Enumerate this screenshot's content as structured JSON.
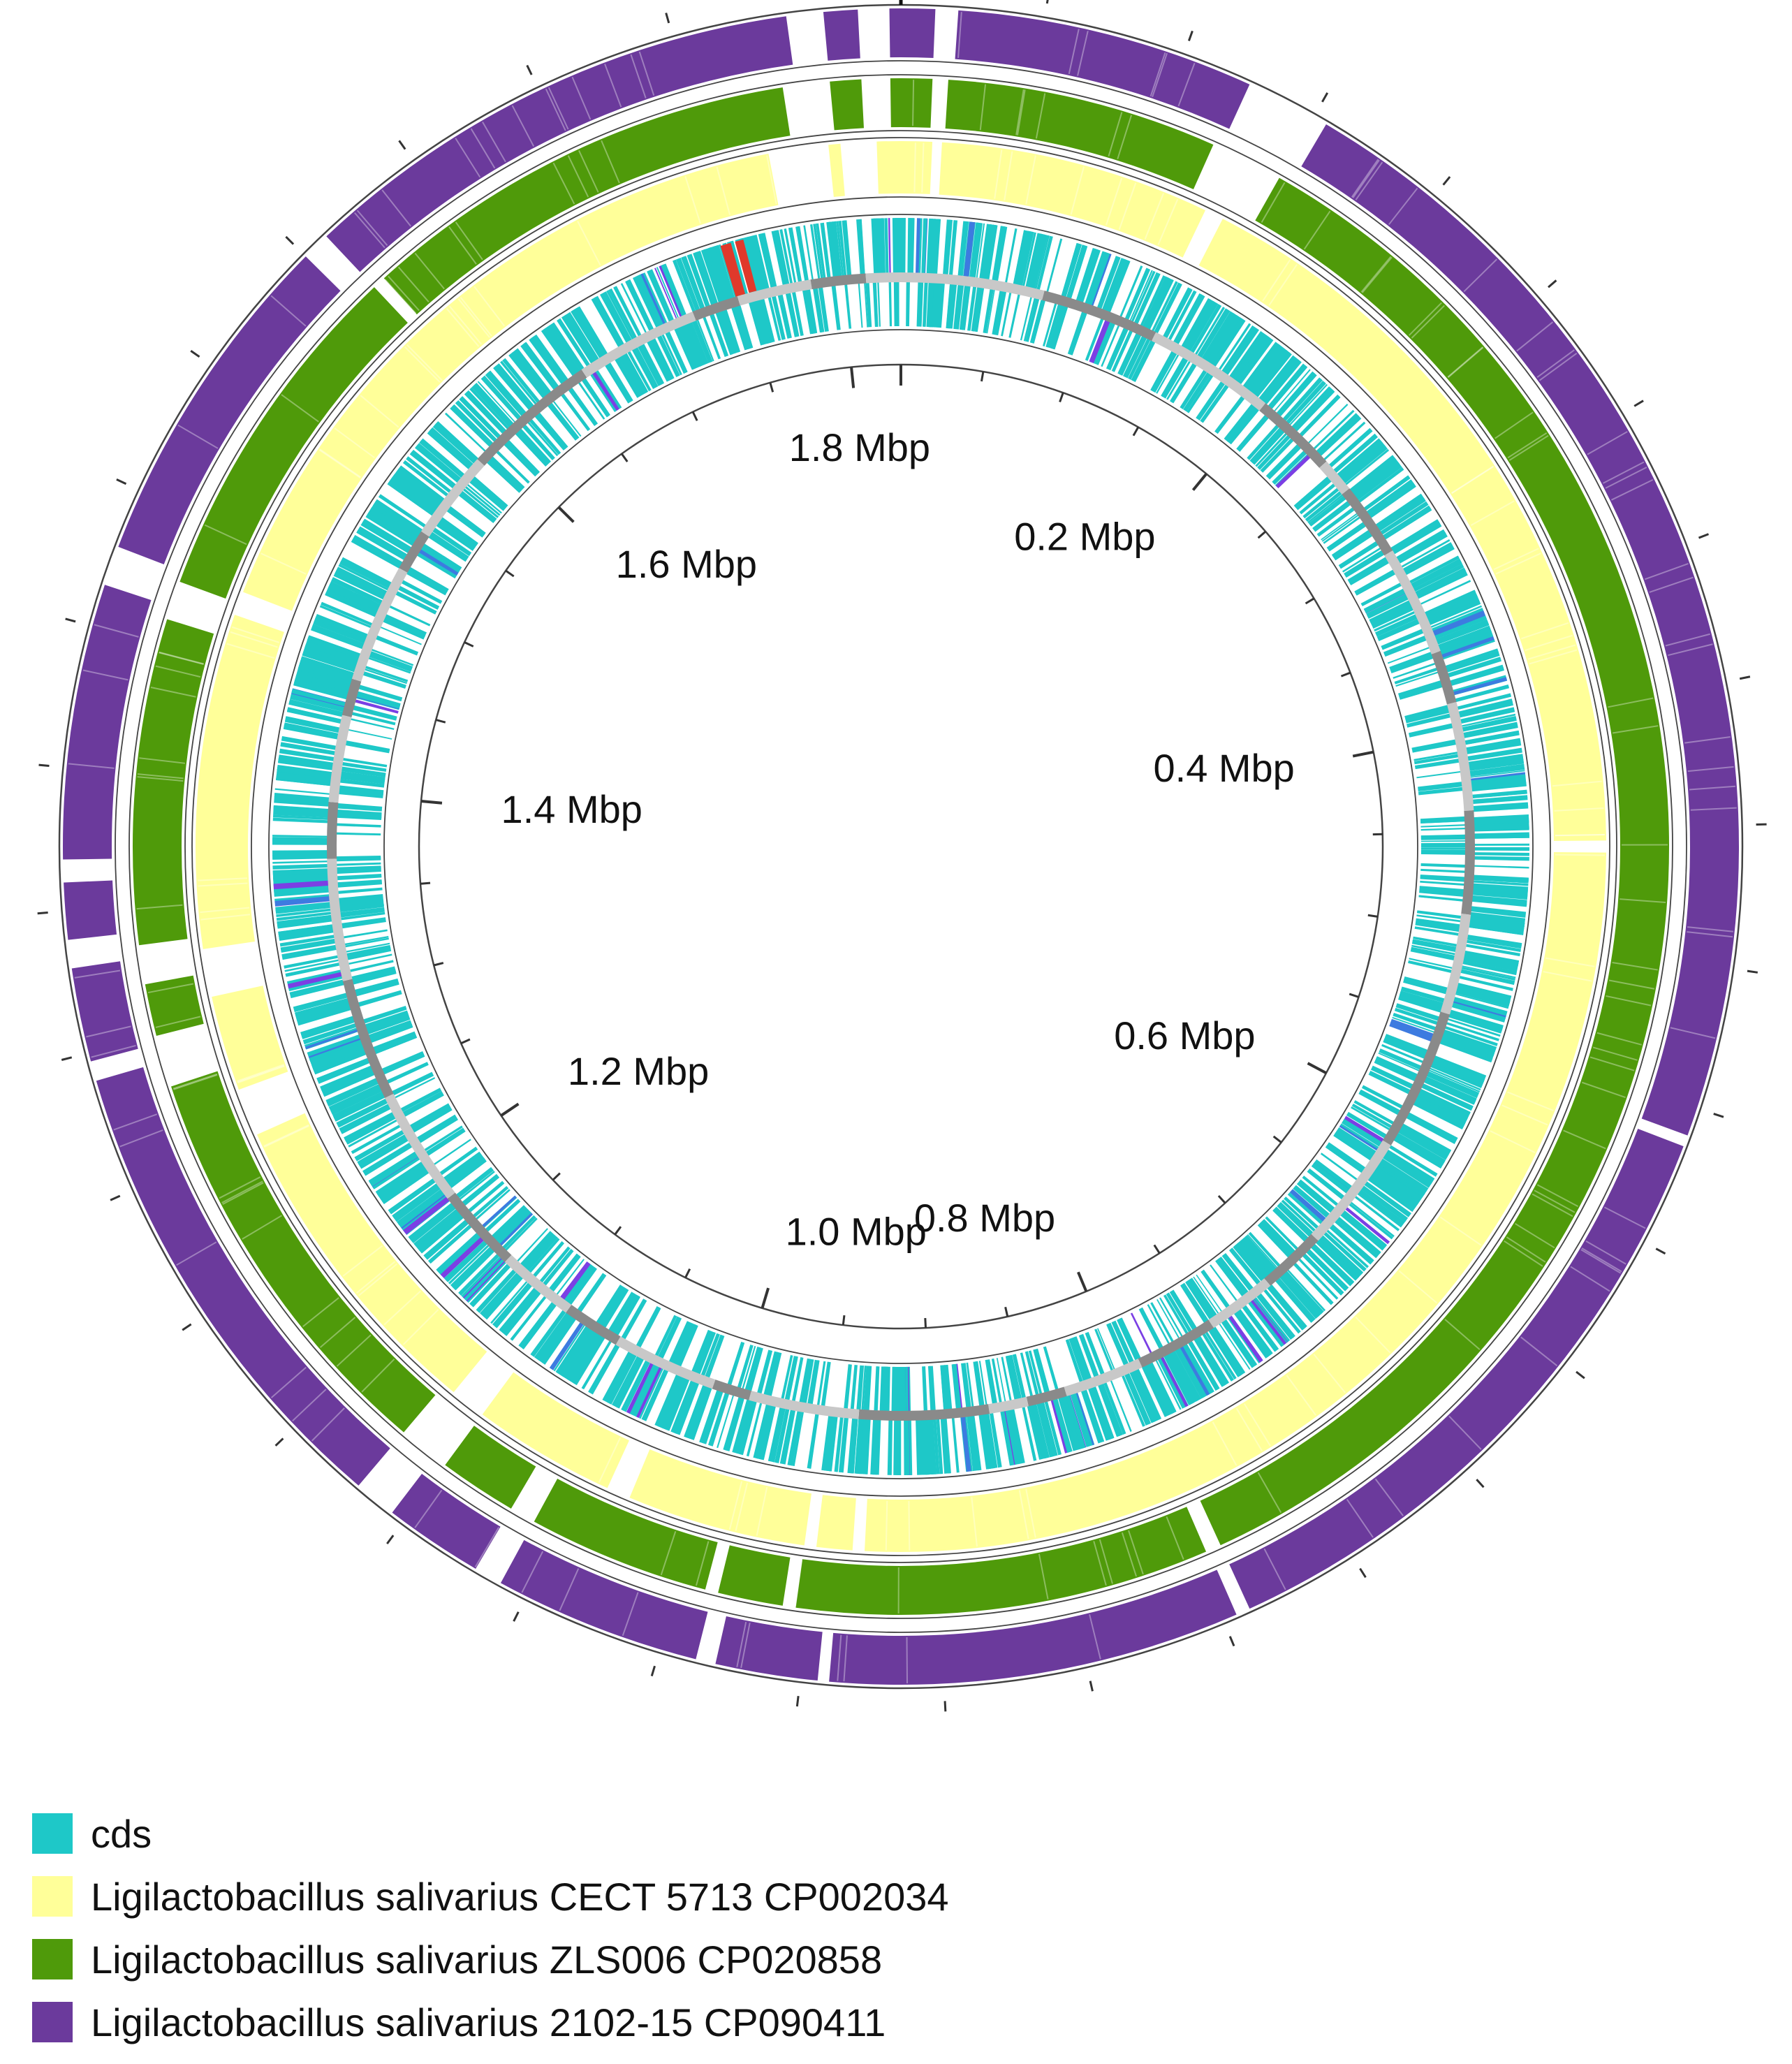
{
  "figure": {
    "genome_length_mbp": 1.83,
    "tick_labels": [
      {
        "text": "0.2 Mbp",
        "mbp": 0.2
      },
      {
        "text": "0.4 Mbp",
        "mbp": 0.4
      },
      {
        "text": "0.6 Mbp",
        "mbp": 0.6
      },
      {
        "text": "0.8 Mbp",
        "mbp": 0.8
      },
      {
        "text": "1.0 Mbp",
        "mbp": 1.0
      },
      {
        "text": "1.2 Mbp",
        "mbp": 1.2
      },
      {
        "text": "1.4 Mbp",
        "mbp": 1.4
      },
      {
        "text": "1.6 Mbp",
        "mbp": 1.6
      },
      {
        "text": "1.8 Mbp",
        "mbp": 1.8
      }
    ]
  },
  "tracks": [
    {
      "id": "comparison-2102-15",
      "color": "#6b3a9c",
      "gaps_mbp": [
        [
          1.79,
          1.803
        ],
        [
          1.815,
          1.826
        ],
        [
          0.012,
          0.02
        ],
        [
          0.125,
          0.155
        ],
        [
          1.465,
          1.479
        ],
        [
          1.36,
          1.368
        ],
        [
          1.33,
          1.34
        ],
        [
          1.29,
          1.297
        ],
        [
          1.105,
          1.12
        ],
        [
          1.06,
          1.07
        ],
        [
          0.98,
          0.987
        ],
        [
          0.94,
          0.944
        ],
        [
          0.79,
          0.795
        ],
        [
          0.56,
          0.564
        ],
        [
          1.6,
          1.61
        ]
      ]
    },
    {
      "id": "comparison-ZLS006",
      "color": "#4f9a0a",
      "gaps_mbp": [
        [
          1.785,
          1.803
        ],
        [
          1.815,
          1.826
        ],
        [
          0.012,
          0.018
        ],
        [
          0.122,
          0.15
        ],
        [
          1.46,
          1.475
        ],
        [
          1.32,
          1.335
        ],
        [
          1.28,
          1.3
        ],
        [
          1.1,
          1.12
        ],
        [
          1.06,
          1.07
        ],
        [
          0.985,
          0.99
        ],
        [
          0.955,
          0.96
        ],
        [
          0.79,
          0.796
        ],
        [
          1.61,
          1.615
        ]
      ]
    },
    {
      "id": "comparison-CECT-5713",
      "color": "#ffff99",
      "gaps_mbp": [
        [
          1.775,
          1.8
        ],
        [
          1.805,
          1.82
        ],
        [
          0.013,
          0.017
        ],
        [
          0.13,
          0.138
        ],
        [
          1.47,
          1.48
        ],
        [
          1.31,
          1.33
        ],
        [
          1.25,
          1.27
        ],
        [
          1.1,
          1.115
        ],
        [
          1.03,
          1.04
        ],
        [
          0.95,
          0.955
        ],
        [
          0.93,
          0.935
        ],
        [
          0.455,
          0.46
        ]
      ]
    }
  ],
  "legend": [
    {
      "label": "cds",
      "color": "#1ec8c8"
    },
    {
      "label": "Ligilactobacillus salivarius CECT 5713 CP002034",
      "color": "#ffff99"
    },
    {
      "label": "Ligilactobacillus salivarius ZLS006 CP020858",
      "color": "#4f9a0a"
    },
    {
      "label": "Ligilactobacillus salivarius 2102-15 CP090411",
      "color": "#6b3a9c"
    }
  ],
  "colors": {
    "cds": "#1ec8c8",
    "cds_accent": "#7b3fe4",
    "cds_alt": "#3d7be0",
    "rna": "#e0392b",
    "backbone_light": "#c8c8c8",
    "backbone_dark": "#8a8a8a",
    "ring_line": "#444444",
    "tick": "#333333"
  }
}
